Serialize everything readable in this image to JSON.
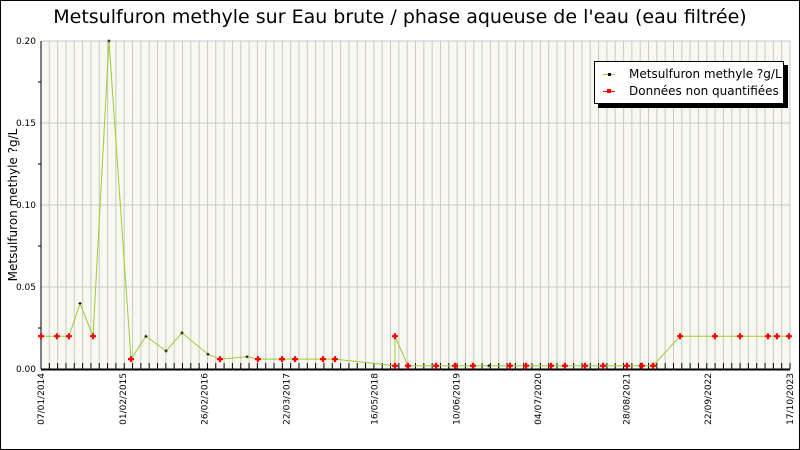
{
  "chart_data": {
    "type": "line",
    "title": "Metsulfuron methyle sur Eau brute / phase aqueuse de l'eau (eau filtrée)",
    "xlabel": "",
    "ylabel": "Metsulfuron methyle ?g/L",
    "xlim": [
      "2014-01-07",
      "2023-10-17"
    ],
    "ylim": [
      0,
      0.2
    ],
    "y_ticks": [
      "0.00",
      "0.05",
      "0.10",
      "0.15",
      "0.20"
    ],
    "x_ticks": [
      {
        "date": "2014-01-07",
        "label": "07/01/2014"
      },
      {
        "date": "2015-02-01",
        "label": "01/02/2015"
      },
      {
        "date": "2016-02-26",
        "label": "26/02/2016"
      },
      {
        "date": "2017-03-22",
        "label": "22/03/2017"
      },
      {
        "date": "2018-05-16",
        "label": "16/05/2018"
      },
      {
        "date": "2019-06-10",
        "label": "10/06/2019"
      },
      {
        "date": "2020-07-04",
        "label": "04/07/2020"
      },
      {
        "date": "2021-08-28",
        "label": "28/08/2021"
      },
      {
        "date": "2022-09-22",
        "label": "22/09/2022"
      },
      {
        "date": "2023-10-17",
        "label": "17/10/2023"
      }
    ],
    "grid": true,
    "legend_position": "top-right",
    "legend": [
      "Metsulfuron methyle ?g/L",
      "Données non quantifiées"
    ],
    "colors": {
      "line": "#9acd32",
      "quantified": "#000000",
      "non_quantified": "#ff0000",
      "plot_bg": "#f8f8f0",
      "grid": "#c8c8c8"
    },
    "points": [
      {
        "date": "2014-01-07",
        "value": 0.02,
        "quantified": false
      },
      {
        "date": "2014-03-24",
        "value": 0.02,
        "quantified": false
      },
      {
        "date": "2014-05-20",
        "value": 0.02,
        "quantified": false
      },
      {
        "date": "2014-07-12",
        "value": 0.04,
        "quantified": true
      },
      {
        "date": "2014-09-12",
        "value": 0.02,
        "quantified": false
      },
      {
        "date": "2014-11-27",
        "value": 0.2,
        "quantified": true
      },
      {
        "date": "2015-03-12",
        "value": 0.006,
        "quantified": false
      },
      {
        "date": "2015-05-22",
        "value": 0.02,
        "quantified": true
      },
      {
        "date": "2015-08-26",
        "value": 0.011,
        "quantified": true
      },
      {
        "date": "2015-11-10",
        "value": 0.022,
        "quantified": true
      },
      {
        "date": "2016-03-13",
        "value": 0.009,
        "quantified": true
      },
      {
        "date": "2016-05-09",
        "value": 0.006,
        "quantified": false
      },
      {
        "date": "2016-09-15",
        "value": 0.0075,
        "quantified": true
      },
      {
        "date": "2016-11-06",
        "value": 0.006,
        "quantified": false
      },
      {
        "date": "2017-03-01",
        "value": 0.006,
        "quantified": false
      },
      {
        "date": "2017-05-02",
        "value": 0.006,
        "quantified": false
      },
      {
        "date": "2017-09-12",
        "value": 0.006,
        "quantified": false
      },
      {
        "date": "2017-11-08",
        "value": 0.006,
        "quantified": false
      },
      {
        "date": "2018-08-21",
        "value": 0.002,
        "quantified": false
      },
      {
        "date": "2018-08-21",
        "value": 0.02,
        "quantified": false
      },
      {
        "date": "2018-10-22",
        "value": 0.002,
        "quantified": false
      },
      {
        "date": "2019-03-05",
        "value": 0.002,
        "quantified": false
      },
      {
        "date": "2019-06-03",
        "value": 0.002,
        "quantified": false
      },
      {
        "date": "2019-08-28",
        "value": 0.002,
        "quantified": false
      },
      {
        "date": "2019-11-12",
        "value": 0.002,
        "quantified": true
      },
      {
        "date": "2020-02-20",
        "value": 0.002,
        "quantified": false
      },
      {
        "date": "2020-05-07",
        "value": 0.002,
        "quantified": false
      },
      {
        "date": "2020-09-03",
        "value": 0.002,
        "quantified": false
      },
      {
        "date": "2020-11-08",
        "value": 0.002,
        "quantified": false
      },
      {
        "date": "2021-02-12",
        "value": 0.002,
        "quantified": false
      },
      {
        "date": "2021-05-09",
        "value": 0.002,
        "quantified": false
      },
      {
        "date": "2021-08-31",
        "value": 0.002,
        "quantified": false
      },
      {
        "date": "2021-11-10",
        "value": 0.002,
        "quantified": false
      },
      {
        "date": "2022-01-02",
        "value": 0.002,
        "quantified": false
      },
      {
        "date": "2022-05-11",
        "value": 0.02,
        "quantified": false
      },
      {
        "date": "2022-10-24",
        "value": 0.02,
        "quantified": false
      },
      {
        "date": "2023-02-21",
        "value": 0.02,
        "quantified": false
      },
      {
        "date": "2023-07-04",
        "value": 0.02,
        "quantified": false
      },
      {
        "date": "2023-08-16",
        "value": 0.02,
        "quantified": false
      },
      {
        "date": "2023-10-12",
        "value": 0.02,
        "quantified": false
      }
    ]
  }
}
